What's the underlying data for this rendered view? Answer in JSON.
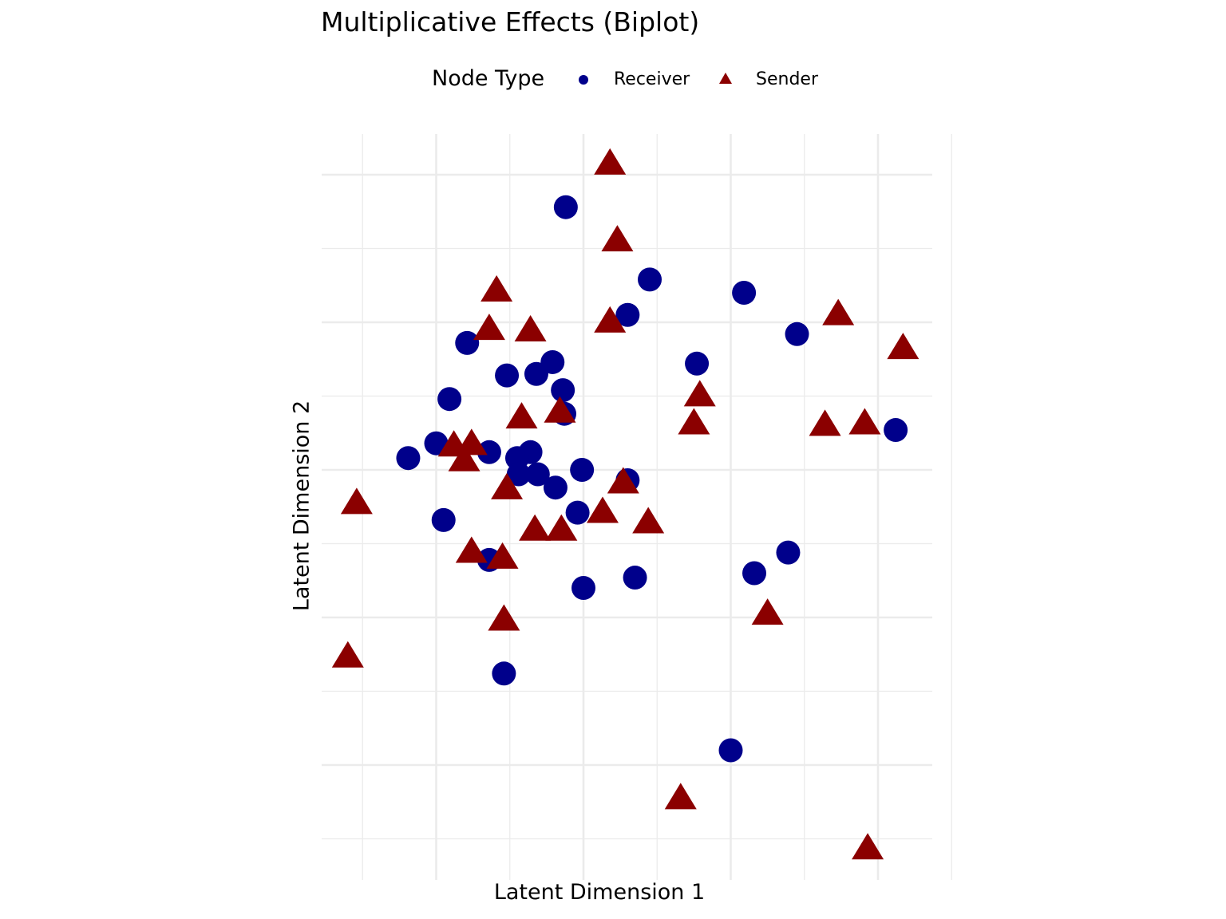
{
  "chart_data": {
    "type": "scatter",
    "title": "Multiplicative Effects (Biplot)",
    "xlabel": "Latent Dimension 1",
    "ylabel": "Latent Dimension 2",
    "xlim": [
      -1.57,
      2.57
    ],
    "ylim": [
      -2.81,
      2.25
    ],
    "grid": true,
    "axis_tick_labels_shown": false,
    "legend": {
      "title": "Node Type",
      "position": "top",
      "entries": [
        "Receiver",
        "Sender"
      ]
    },
    "series": [
      {
        "name": "Receiver",
        "shape": "circle",
        "color": "#00008B",
        "points": [
          [
            -0.12,
            1.78
          ],
          [
            0.45,
            1.29
          ],
          [
            1.09,
            1.2
          ],
          [
            0.3,
            1.05
          ],
          [
            1.45,
            0.92
          ],
          [
            -0.79,
            0.86
          ],
          [
            -0.21,
            0.73
          ],
          [
            0.77,
            0.72
          ],
          [
            -0.52,
            0.64
          ],
          [
            -0.32,
            0.65
          ],
          [
            -0.14,
            0.54
          ],
          [
            -0.91,
            0.48
          ],
          [
            -0.13,
            0.38
          ],
          [
            2.12,
            0.27
          ],
          [
            -1.0,
            0.18
          ],
          [
            -0.36,
            0.12
          ],
          [
            -1.19,
            0.08
          ],
          [
            -0.64,
            0.12
          ],
          [
            -0.45,
            0.08
          ],
          [
            -0.01,
            0.0
          ],
          [
            -0.44,
            -0.03
          ],
          [
            -0.31,
            -0.03
          ],
          [
            0.3,
            -0.07
          ],
          [
            -0.19,
            -0.12
          ],
          [
            -0.04,
            -0.29
          ],
          [
            -0.95,
            -0.34
          ],
          [
            1.39,
            -0.56
          ],
          [
            1.16,
            -0.7
          ],
          [
            -0.64,
            -0.61
          ],
          [
            0.35,
            -0.73
          ],
          [
            0.0,
            -0.8
          ],
          [
            -0.54,
            -1.38
          ],
          [
            1.0,
            -1.9
          ]
        ]
      },
      {
        "name": "Sender",
        "shape": "triangle",
        "color": "#8B0000",
        "points": [
          [
            0.18,
            2.06
          ],
          [
            0.23,
            1.54
          ],
          [
            -0.59,
            1.2
          ],
          [
            0.18,
            0.99
          ],
          [
            -0.64,
            0.94
          ],
          [
            -0.36,
            0.93
          ],
          [
            1.73,
            1.04
          ],
          [
            2.17,
            0.81
          ],
          [
            0.79,
            0.49
          ],
          [
            -0.16,
            0.38
          ],
          [
            -0.42,
            0.34
          ],
          [
            0.75,
            0.3
          ],
          [
            1.64,
            0.29
          ],
          [
            1.91,
            0.3
          ],
          [
            -0.88,
            0.15
          ],
          [
            -0.76,
            0.16
          ],
          [
            -0.81,
            0.05
          ],
          [
            0.27,
            -0.1
          ],
          [
            -0.52,
            -0.14
          ],
          [
            -1.54,
            -0.24
          ],
          [
            0.13,
            -0.3
          ],
          [
            0.44,
            -0.37
          ],
          [
            -0.33,
            -0.42
          ],
          [
            -0.15,
            -0.42
          ],
          [
            -0.76,
            -0.57
          ],
          [
            -0.55,
            -0.61
          ],
          [
            1.25,
            -0.99
          ],
          [
            -0.54,
            -1.03
          ],
          [
            -1.6,
            -1.28
          ],
          [
            0.66,
            -2.24
          ],
          [
            1.93,
            -2.58
          ]
        ]
      }
    ]
  }
}
